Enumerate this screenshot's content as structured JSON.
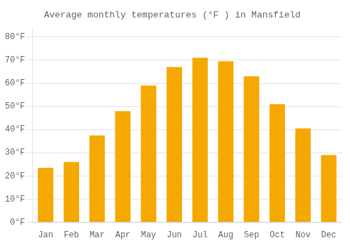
{
  "chart_data": {
    "type": "bar",
    "title": "Average monthly temperatures (°F ) in Mansfield",
    "categories": [
      "Jan",
      "Feb",
      "Mar",
      "Apr",
      "May",
      "Jun",
      "Jul",
      "Aug",
      "Sep",
      "Oct",
      "Nov",
      "Dec"
    ],
    "values": [
      23.5,
      26.0,
      37.5,
      48.0,
      59.0,
      67.0,
      71.0,
      69.5,
      63.0,
      51.0,
      40.5,
      29.0
    ],
    "color": "#F5A800",
    "ylim": [
      0,
      84
    ],
    "yticks": [
      {
        "value": 0,
        "label": "0°F"
      },
      {
        "value": 10,
        "label": "10°F"
      },
      {
        "value": 20,
        "label": "20°F"
      },
      {
        "value": 30,
        "label": "30°F"
      },
      {
        "value": 40,
        "label": "40°F"
      },
      {
        "value": 50,
        "label": "50°F"
      },
      {
        "value": 60,
        "label": "60°F"
      },
      {
        "value": 70,
        "label": "70°F"
      },
      {
        "value": 80,
        "label": "80°F"
      }
    ],
    "grid": true
  }
}
